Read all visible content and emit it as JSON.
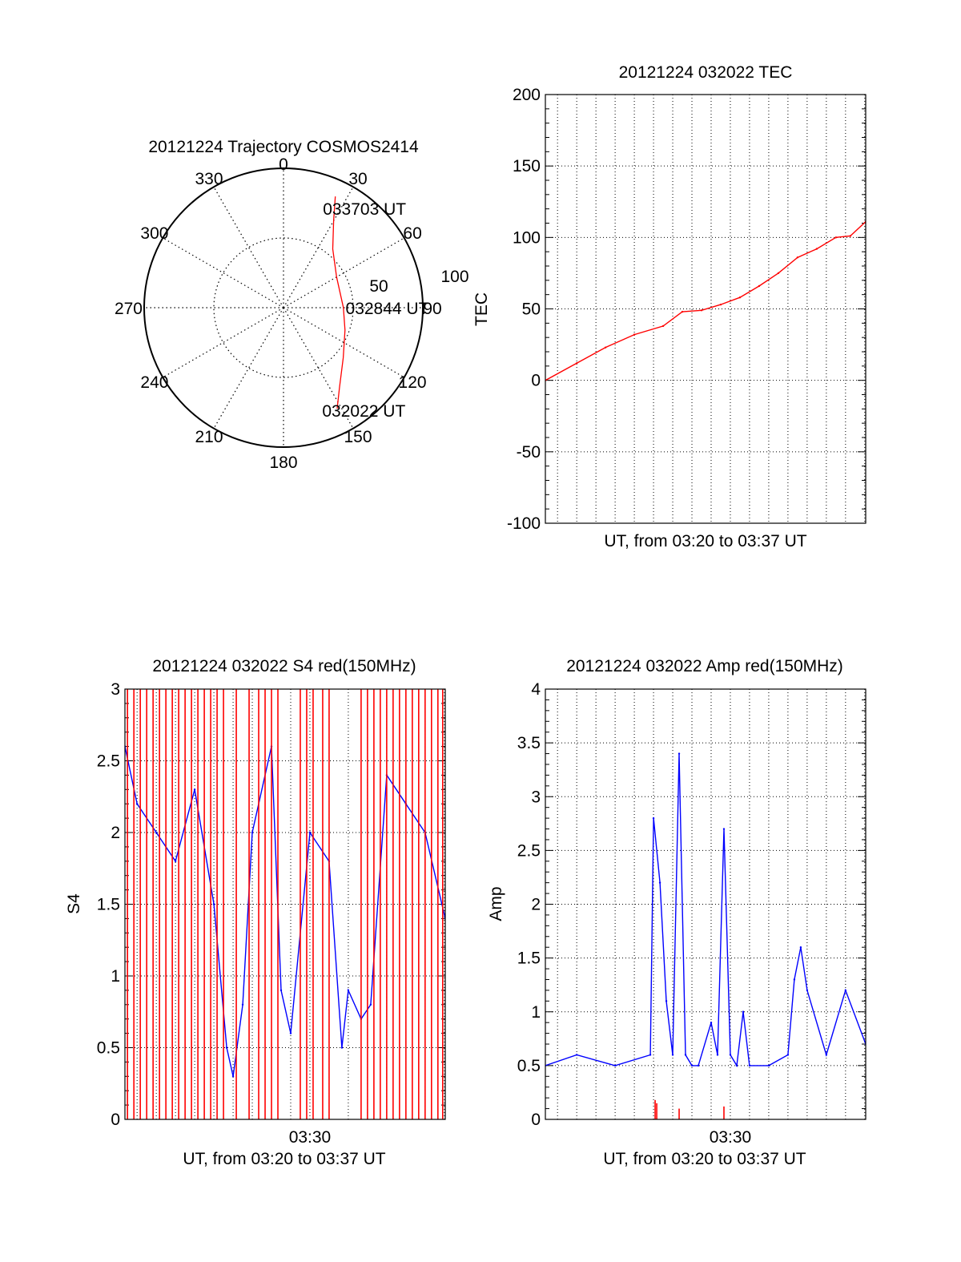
{
  "chart_data": [
    {
      "id": "trajectory",
      "type": "polar",
      "title": "20121224 Trajectory COSMOS2414",
      "azimuth_labels": [
        "0",
        "30",
        "60",
        "90",
        "120",
        "150",
        "180",
        "210",
        "240",
        "270",
        "300",
        "330"
      ],
      "radial_labels": [
        "50",
        "100"
      ],
      "rlim": [
        0,
        100
      ],
      "grid": true,
      "annotations": [
        {
          "text": "033703 UT",
          "az": 24,
          "r": 78
        },
        {
          "text": "032844 UT",
          "az": 90,
          "r": 48
        },
        {
          "text": "032022 UT",
          "az": 157,
          "r": 80
        }
      ],
      "series": [
        {
          "color": "#ff0000",
          "points": [
            [
              25,
              88
            ],
            [
              30,
              72
            ],
            [
              40,
              55
            ],
            [
              60,
              44
            ],
            [
              80,
              42
            ],
            [
              90,
              43
            ],
            [
              110,
              47
            ],
            [
              130,
              56
            ],
            [
              145,
              70
            ],
            [
              152,
              82
            ]
          ]
        }
      ]
    },
    {
      "id": "tec",
      "type": "line",
      "title": "20121224 032022 TEC",
      "xlabel": "UT, from 03:20 to 03:37 UT",
      "ylabel": "TEC",
      "xlim": [
        "03:20:22",
        "03:37:03"
      ],
      "ylim": [
        -100,
        200
      ],
      "yticks": [
        "200",
        "150",
        "100",
        "50",
        "0",
        "-50",
        "-100"
      ],
      "grid": true,
      "series": [
        {
          "color": "#ff0000",
          "x": [
            "03:20:22",
            "03:22:00",
            "03:23:30",
            "03:25:00",
            "03:26:30",
            "03:27:30",
            "03:28:30",
            "03:29:30",
            "03:30:30",
            "03:31:30",
            "03:32:30",
            "03:33:30",
            "03:34:30",
            "03:35:30",
            "03:36:15",
            "03:37:03"
          ],
          "values": [
            0,
            12,
            23,
            32,
            38,
            48,
            49,
            53,
            58,
            66,
            75,
            86,
            92,
            100,
            101,
            111
          ]
        }
      ]
    },
    {
      "id": "s4",
      "type": "line",
      "title": "20121224 032022 S4 red(150MHz)",
      "xlabel": "UT, from 03:20 to 03:37 UT",
      "ylabel": "S4",
      "xlim": [
        "03:20:22",
        "03:37:03"
      ],
      "ylim": [
        0,
        3
      ],
      "yticks": [
        "3",
        "2.5",
        "2",
        "1.5",
        "1",
        "0.5",
        "0"
      ],
      "xticks": [
        "03:30"
      ],
      "grid": true,
      "series": [
        {
          "color": "#0000ff",
          "x": [
            "03:20:22",
            "03:21:00",
            "03:22:00",
            "03:23:00",
            "03:24:00",
            "03:25:00",
            "03:25:40",
            "03:26:00",
            "03:26:30",
            "03:27:00",
            "03:28:00",
            "03:28:30",
            "03:29:00",
            "03:30:00",
            "03:31:00",
            "03:31:40",
            "03:32:00",
            "03:32:40",
            "03:33:10",
            "03:34:00",
            "03:35:00",
            "03:36:00",
            "03:37:03"
          ],
          "values": [
            2.6,
            2.2,
            2.0,
            1.8,
            2.3,
            1.5,
            0.5,
            0.3,
            0.8,
            2.0,
            2.6,
            0.9,
            0.6,
            2.0,
            1.8,
            0.5,
            0.9,
            0.7,
            0.8,
            2.4,
            2.2,
            2.0,
            1.4
          ]
        },
        {
          "color": "#ff0000",
          "style": "spikes",
          "x": [
            "03:20:30",
            "03:20:50",
            "03:21:10",
            "03:21:30",
            "03:21:50",
            "03:22:10",
            "03:22:30",
            "03:22:50",
            "03:23:10",
            "03:23:30",
            "03:23:50",
            "03:24:10",
            "03:24:30",
            "03:24:50",
            "03:25:10",
            "03:25:30",
            "03:26:10",
            "03:26:50",
            "03:27:20",
            "03:27:40",
            "03:28:00",
            "03:28:20",
            "03:29:30",
            "03:29:50",
            "03:30:10",
            "03:30:40",
            "03:31:00",
            "03:32:40",
            "03:33:00",
            "03:33:20",
            "03:33:40",
            "03:34:00",
            "03:34:20",
            "03:34:40",
            "03:35:00",
            "03:35:20",
            "03:35:40",
            "03:36:00",
            "03:36:20",
            "03:36:40",
            "03:36:55"
          ],
          "values": [
            3,
            3,
            3,
            3,
            3,
            3,
            3,
            3,
            3,
            3,
            3,
            3,
            3,
            3,
            3,
            3,
            3,
            3,
            3,
            3,
            3,
            3,
            3,
            3,
            3,
            3,
            3,
            3,
            3,
            3,
            3,
            3,
            3,
            3,
            3,
            3,
            3,
            3,
            3,
            3,
            3
          ]
        }
      ]
    },
    {
      "id": "amp",
      "type": "line",
      "title": "20121224 032022 Amp red(150MHz)",
      "xlabel": "UT, from 03:20 to 03:37 UT",
      "ylabel": "Amp",
      "xlim": [
        "03:20:22",
        "03:37:03"
      ],
      "ylim": [
        0,
        4
      ],
      "yticks": [
        "4",
        "3.5",
        "3",
        "2.5",
        "2",
        "1.5",
        "1",
        "0.5",
        "0"
      ],
      "xticks": [
        "03:30"
      ],
      "grid": true,
      "series": [
        {
          "color": "#0000ff",
          "x": [
            "03:20:22",
            "03:22:00",
            "03:24:00",
            "03:25:50",
            "03:26:00",
            "03:26:20",
            "03:26:40",
            "03:27:00",
            "03:27:20",
            "03:27:40",
            "03:28:00",
            "03:28:20",
            "03:29:00",
            "03:29:20",
            "03:29:40",
            "03:30:00",
            "03:30:20",
            "03:30:40",
            "03:31:00",
            "03:32:00",
            "03:33:00",
            "03:33:20",
            "03:33:40",
            "03:34:00",
            "03:35:00",
            "03:36:00",
            "03:37:03"
          ],
          "values": [
            0.5,
            0.6,
            0.5,
            0.6,
            2.8,
            2.2,
            1.1,
            0.6,
            3.4,
            0.6,
            0.5,
            0.5,
            0.9,
            0.6,
            2.7,
            0.6,
            0.5,
            1.0,
            0.5,
            0.5,
            0.6,
            1.3,
            1.6,
            1.2,
            0.6,
            1.2,
            0.7
          ]
        },
        {
          "color": "#ff0000",
          "style": "spikes",
          "x": [
            "03:26:05",
            "03:26:10",
            "03:27:20",
            "03:29:40"
          ],
          "values": [
            0.18,
            0.15,
            0.1,
            0.12
          ]
        }
      ]
    }
  ]
}
